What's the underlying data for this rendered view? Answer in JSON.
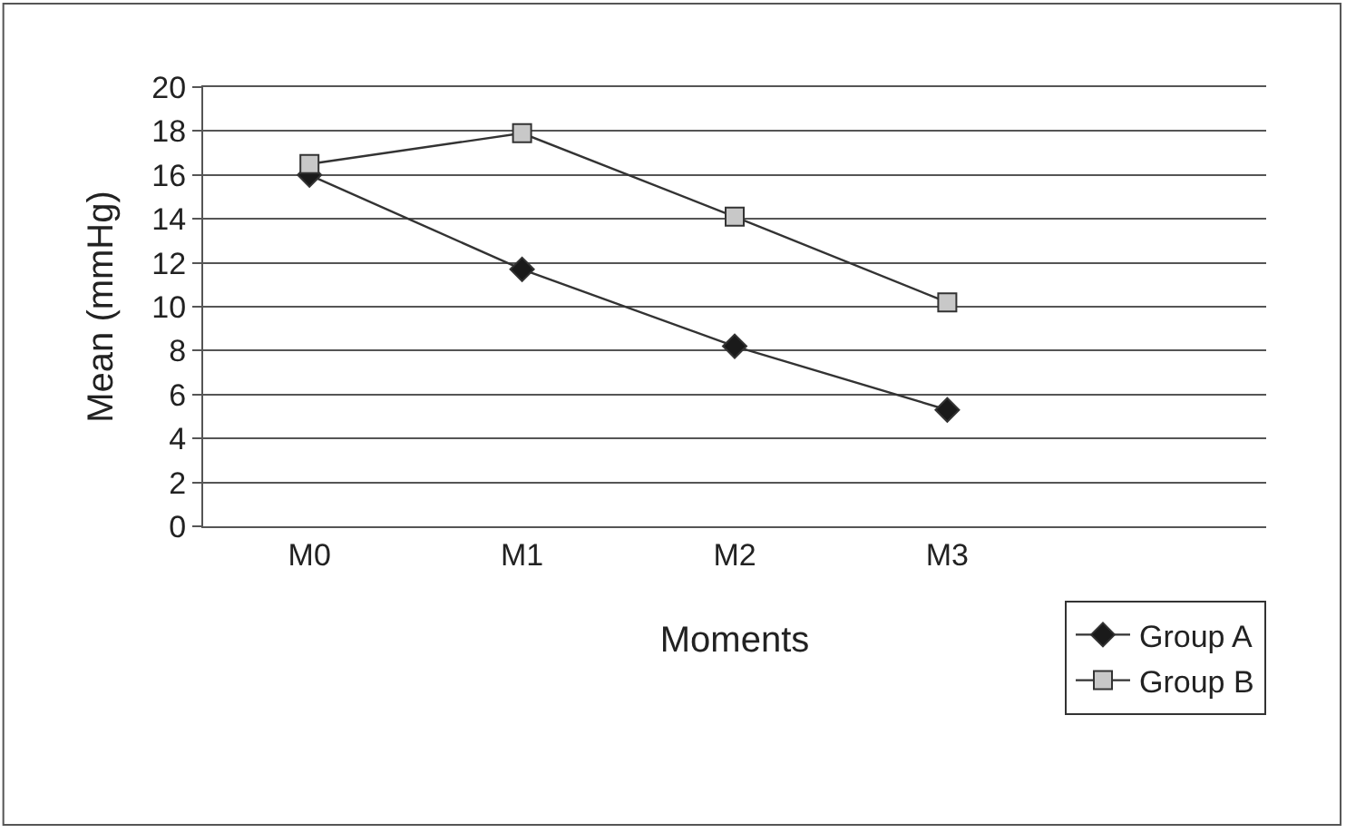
{
  "chart_data": {
    "type": "line",
    "xlabel": "Moments",
    "ylabel": "Mean (mmHg)",
    "categories": [
      "M0",
      "M1",
      "M2",
      "M3"
    ],
    "series": [
      {
        "name": "Group A",
        "color": "#1a1a1a",
        "marker": "diamond",
        "values": [
          16,
          11.7,
          8.2,
          5.3
        ]
      },
      {
        "name": "Group B",
        "color": "#c8c8c8",
        "marker": "square",
        "values": [
          16.5,
          17.9,
          14.1,
          10.2
        ]
      }
    ],
    "ylim": [
      0,
      20
    ],
    "yticks": [
      0,
      2,
      4,
      6,
      8,
      10,
      12,
      14,
      16,
      18,
      20
    ],
    "grid": "y",
    "legend": "bottom right"
  }
}
